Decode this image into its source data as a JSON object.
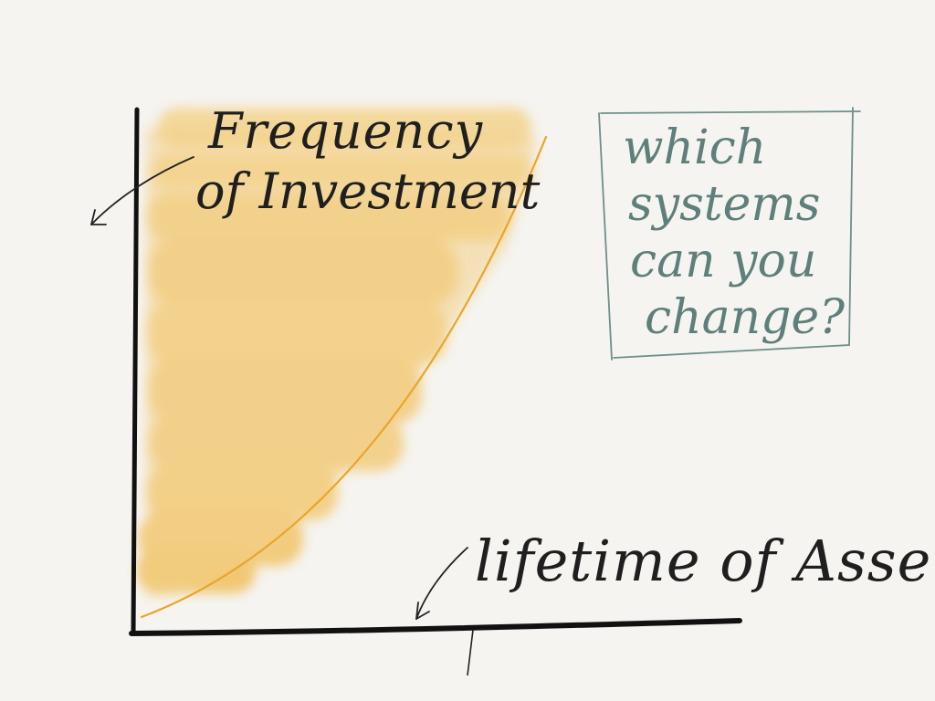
{
  "diagram": {
    "y_label_line1": "Frequency",
    "y_label_line2": "of Investment",
    "x_label": "lifetime of Asset",
    "note_lines": [
      "which",
      "systems",
      "can you",
      "change?"
    ],
    "colors": {
      "background": "#f5f4f0",
      "ink": "#1f1f1f",
      "fill": "#f2c25c",
      "curve": "#e9a52a",
      "note": "#5e7f7a"
    }
  }
}
